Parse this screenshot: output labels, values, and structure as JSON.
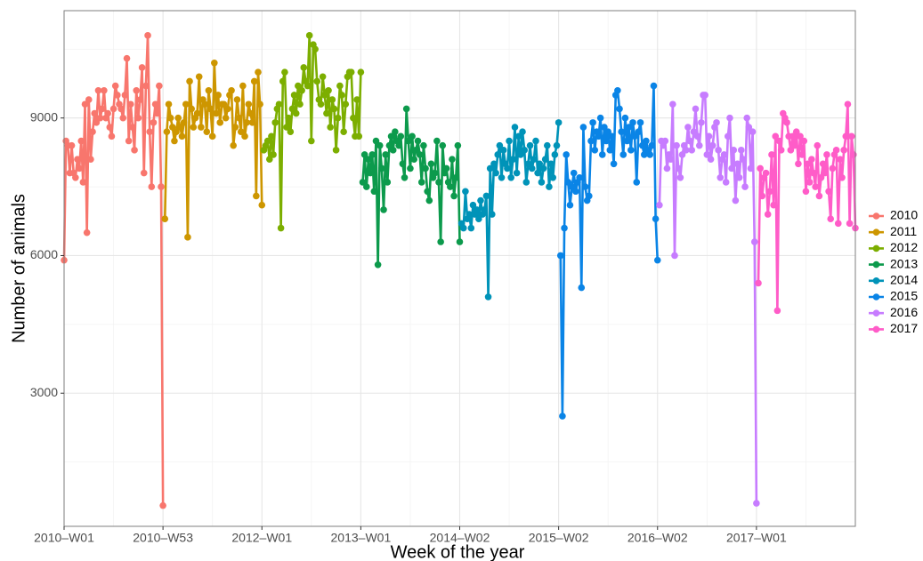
{
  "chart_data": {
    "type": "line",
    "x_label": "Week of the year",
    "y_label": "Number of animals",
    "xlim": [
      0,
      416
    ],
    "ylim": [
      97,
      11340
    ],
    "xticks": [
      {
        "value": 0,
        "label": "2010–W01"
      },
      {
        "value": 52,
        "label": "2010–W53"
      },
      {
        "value": 104,
        "label": "2012–W01"
      },
      {
        "value": 156,
        "label": "2013–W01"
      },
      {
        "value": 208,
        "label": "2014–W02"
      },
      {
        "value": 260,
        "label": "2015–W02"
      },
      {
        "value": 312,
        "label": "2016–W02"
      },
      {
        "value": 364,
        "label": "2017–W01"
      }
    ],
    "yticks": [
      3000,
      6000,
      9000
    ],
    "grid": true,
    "legend": "right",
    "series": [
      {
        "name": "2010",
        "color": "#F8766D",
        "x": [
          0,
          1,
          2,
          3,
          4,
          5,
          6,
          7,
          8,
          9,
          10,
          11,
          12,
          13,
          14,
          15,
          16,
          17,
          18,
          19,
          20,
          21,
          22,
          23,
          24,
          25,
          26,
          27,
          28,
          29,
          30,
          31,
          32,
          33,
          34,
          35,
          36,
          37,
          38,
          39,
          40,
          41,
          42,
          43,
          44,
          45,
          46,
          47,
          48,
          49,
          50,
          51,
          52
        ],
        "values": [
          5900,
          8500,
          8400,
          7800,
          8400,
          7800,
          7700,
          8100,
          7900,
          8500,
          7600,
          9300,
          6500,
          9400,
          8100,
          8700,
          9100,
          8900,
          9600,
          9000,
          9200,
          9600,
          9000,
          9100,
          8800,
          8600,
          9200,
          9700,
          9500,
          9300,
          9200,
          9000,
          9500,
          10300,
          8500,
          9300,
          8800,
          8300,
          9600,
          9000,
          9400,
          10100,
          7800,
          9700,
          10800,
          8700,
          7500,
          8900,
          9300,
          9100,
          9700,
          7500,
          550
        ]
      },
      {
        "name": "2011",
        "color": "#CD9600",
        "x": [
          53,
          54,
          55,
          56,
          57,
          58,
          59,
          60,
          61,
          62,
          63,
          64,
          65,
          66,
          67,
          68,
          69,
          70,
          71,
          72,
          73,
          74,
          75,
          76,
          77,
          78,
          79,
          80,
          81,
          82,
          83,
          84,
          85,
          86,
          87,
          88,
          89,
          90,
          91,
          92,
          93,
          94,
          95,
          96,
          97,
          98,
          99,
          100,
          101,
          102,
          103,
          104
        ],
        "values": [
          6800,
          8700,
          9300,
          9000,
          8800,
          8500,
          8700,
          9000,
          8800,
          8600,
          8900,
          9300,
          6400,
          9800,
          9200,
          8800,
          9000,
          9100,
          9900,
          8800,
          9400,
          9300,
          8700,
          9600,
          9200,
          8600,
          10200,
          9100,
          9500,
          8900,
          9300,
          9300,
          9000,
          9200,
          9500,
          9600,
          8400,
          8800,
          9400,
          9000,
          8700,
          9700,
          8600,
          8900,
          9300,
          9100,
          8900,
          9800,
          7300,
          10000,
          9300,
          7100
        ]
      },
      {
        "name": "2012",
        "color": "#7CAE00",
        "x": [
          105,
          106,
          107,
          108,
          109,
          110,
          111,
          112,
          113,
          114,
          115,
          116,
          117,
          118,
          119,
          120,
          121,
          122,
          123,
          124,
          125,
          126,
          127,
          128,
          129,
          130,
          131,
          132,
          133,
          134,
          135,
          136,
          137,
          138,
          139,
          140,
          141,
          142,
          143,
          144,
          145,
          146,
          147,
          148,
          149,
          150,
          151,
          152,
          153,
          154,
          155,
          156
        ],
        "values": [
          8300,
          8400,
          8500,
          8100,
          8600,
          8200,
          8900,
          9200,
          9300,
          6600,
          9800,
          10000,
          8800,
          9000,
          8700,
          9200,
          9500,
          9100,
          9700,
          9300,
          9600,
          10100,
          9800,
          9700,
          10800,
          8500,
          10600,
          10500,
          9800,
          9400,
          9300,
          9900,
          9500,
          9100,
          9600,
          8800,
          9400,
          9200,
          8300,
          9000,
          9700,
          9500,
          8700,
          9300,
          9900,
          10000,
          10000,
          9000,
          8600,
          9400,
          8600,
          10000
        ]
      },
      {
        "name": "2013",
        "color": "#0C9A4C",
        "x": [
          157,
          158,
          159,
          160,
          161,
          162,
          163,
          164,
          165,
          166,
          167,
          168,
          169,
          170,
          171,
          172,
          173,
          174,
          175,
          176,
          177,
          178,
          179,
          180,
          181,
          182,
          183,
          184,
          185,
          186,
          187,
          188,
          189,
          190,
          191,
          192,
          193,
          194,
          195,
          196,
          197,
          198,
          199,
          200,
          201,
          202,
          203,
          204,
          205,
          206,
          207,
          208
        ],
        "values": [
          7600,
          8200,
          7500,
          8100,
          7800,
          8200,
          7400,
          8500,
          5800,
          8400,
          7900,
          7000,
          8200,
          7600,
          8400,
          8600,
          8300,
          8700,
          8500,
          8400,
          8600,
          8000,
          7700,
          9200,
          8500,
          7900,
          8600,
          8100,
          8300,
          8500,
          8200,
          7600,
          8400,
          7900,
          7400,
          7200,
          8000,
          7700,
          7800,
          8500,
          7600,
          6300,
          8400,
          7800,
          7900,
          7600,
          7500,
          8100,
          7300,
          7700,
          8400,
          6300
        ]
      },
      {
        "name": "2014",
        "color": "#0093B8",
        "x": [
          209,
          210,
          211,
          212,
          213,
          214,
          215,
          216,
          217,
          218,
          219,
          220,
          221,
          222,
          223,
          224,
          225,
          226,
          227,
          228,
          229,
          230,
          231,
          232,
          233,
          234,
          235,
          236,
          237,
          238,
          239,
          240,
          241,
          242,
          243,
          244,
          245,
          246,
          247,
          248,
          249,
          250,
          251,
          252,
          253,
          254,
          255,
          256,
          257,
          258,
          259,
          260
        ],
        "values": [
          6700,
          6600,
          7400,
          6800,
          6900,
          6600,
          7100,
          6900,
          7000,
          6800,
          7200,
          6900,
          7000,
          7300,
          5100,
          7900,
          6900,
          8000,
          7800,
          8200,
          8400,
          7700,
          8300,
          8000,
          7900,
          8500,
          7700,
          8100,
          8800,
          7800,
          8600,
          8200,
          8700,
          8300,
          7600,
          8000,
          8400,
          7900,
          8100,
          8500,
          7800,
          8000,
          7600,
          7900,
          8100,
          8400,
          7500,
          8000,
          7700,
          8200,
          8400,
          8900
        ]
      },
      {
        "name": "2015",
        "color": "#0A84E6",
        "x": [
          261,
          262,
          263,
          264,
          265,
          266,
          267,
          268,
          269,
          270,
          271,
          272,
          273,
          274,
          275,
          276,
          277,
          278,
          279,
          280,
          281,
          282,
          283,
          284,
          285,
          286,
          287,
          288,
          289,
          290,
          291,
          292,
          293,
          294,
          295,
          296,
          297,
          298,
          299,
          300,
          301,
          302,
          303,
          304,
          305,
          306,
          307,
          308,
          309,
          310,
          311,
          312
        ],
        "values": [
          6000,
          2500,
          6600,
          8200,
          7600,
          7100,
          7500,
          7800,
          7400,
          7600,
          7700,
          5300,
          8800,
          7500,
          7200,
          7300,
          8500,
          8900,
          8300,
          8700,
          8600,
          9000,
          8200,
          8800,
          8500,
          8700,
          8300,
          8600,
          8000,
          9500,
          9600,
          9200,
          8700,
          8200,
          9000,
          8500,
          8800,
          8300,
          8900,
          8600,
          7600,
          8700,
          8900,
          8400,
          8200,
          8500,
          8300,
          8200,
          8400,
          9700,
          6800,
          5900
        ]
      },
      {
        "name": "2016",
        "color": "#C77CFF",
        "x": [
          313,
          314,
          315,
          316,
          317,
          318,
          319,
          320,
          321,
          322,
          323,
          324,
          325,
          326,
          327,
          328,
          329,
          330,
          331,
          332,
          333,
          334,
          335,
          336,
          337,
          338,
          339,
          340,
          341,
          342,
          343,
          344,
          345,
          346,
          347,
          348,
          349,
          350,
          351,
          352,
          353,
          354,
          355,
          356,
          357,
          358,
          359,
          360,
          361,
          362,
          363,
          364
        ],
        "values": [
          7100,
          8500,
          8400,
          8500,
          7900,
          8200,
          8100,
          9300,
          6000,
          8400,
          7900,
          7700,
          8200,
          8400,
          8300,
          8800,
          8500,
          8300,
          8700,
          9200,
          8600,
          8400,
          8900,
          9500,
          9500,
          8200,
          8600,
          8100,
          8400,
          8800,
          8900,
          8300,
          7700,
          8100,
          8200,
          7600,
          8600,
          9000,
          7900,
          8300,
          7200,
          8000,
          7700,
          8300,
          8100,
          7500,
          9000,
          8800,
          7900,
          8700,
          6300,
          600
        ]
      },
      {
        "name": "2017",
        "color": "#FF5CC8",
        "x": [
          365,
          366,
          367,
          368,
          369,
          370,
          371,
          372,
          373,
          374,
          375,
          376,
          377,
          378,
          379,
          380,
          381,
          382,
          383,
          384,
          385,
          386,
          387,
          388,
          389,
          390,
          391,
          392,
          393,
          394,
          395,
          396,
          397,
          398,
          399,
          400,
          401,
          402,
          403,
          404,
          405,
          406,
          407,
          408,
          409,
          410,
          411,
          412,
          413,
          414,
          415,
          416
        ],
        "values": [
          5400,
          7900,
          7300,
          7700,
          7800,
          6900,
          7400,
          8200,
          7100,
          8600,
          4800,
          8500,
          8300,
          9100,
          9000,
          8900,
          8600,
          8300,
          8600,
          8400,
          8700,
          8000,
          8600,
          8200,
          8500,
          7400,
          8000,
          7600,
          8100,
          7800,
          7500,
          8400,
          7300,
          7700,
          8000,
          7800,
          8200,
          7400,
          6800,
          7900,
          8200,
          8300,
          6700,
          8100,
          7700,
          8300,
          8600,
          9300,
          6700,
          8600,
          8200,
          6600
        ]
      }
    ]
  }
}
